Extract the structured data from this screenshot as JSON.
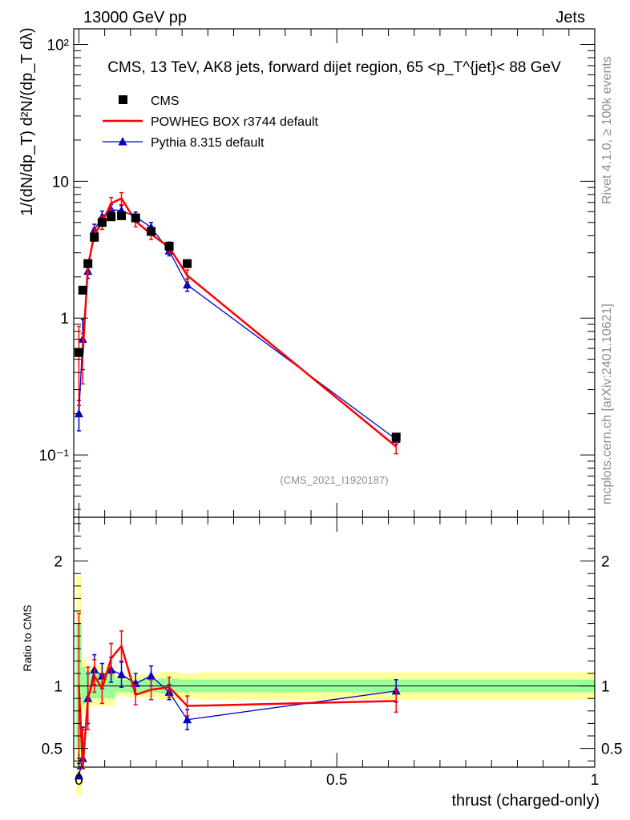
{
  "header": {
    "left": "13000 GeV pp",
    "right": "Jets"
  },
  "side_labels": {
    "rivet": "Rivet 4.1.0, ≥ 100k events",
    "mcplots": "mcplots.cern.ch [arXiv:2401.10621]"
  },
  "colors": {
    "cms": "#000000",
    "powheg": "#ff0000",
    "pythia": "#0000cc",
    "band_inner": "#99ff99",
    "band_outer": "#ffff99"
  },
  "chart_data": [
    {
      "type": "scatter",
      "title": "CMS, 13 TeV, AK8 jets, forward dijet region, 65 <p_T^{jet}< 88 GeV",
      "ylabel": "1/(dN/dp_T) d²N/(dp_T dλ)",
      "yscale": "log",
      "ylim": [
        0.035,
        130
      ],
      "xlim": [
        -0.01,
        1.0
      ],
      "analysis_id": "(CMS_2021_I1920187)",
      "y_ticks": [
        {
          "value": 0.1,
          "label": "10⁻¹"
        },
        {
          "value": 1,
          "label": "1"
        },
        {
          "value": 10,
          "label": "10"
        },
        {
          "value": 100,
          "label": "10²"
        }
      ],
      "legend": [
        "CMS",
        "POWHEG BOX r3744 default",
        "Pythia 8.315 default"
      ],
      "legend_position": "top-left",
      "series": [
        {
          "name": "CMS",
          "marker": "square",
          "x": [
            0.0,
            0.0075,
            0.0175,
            0.03,
            0.045,
            0.0625,
            0.0825,
            0.11,
            0.14,
            0.175,
            0.21,
            0.615
          ],
          "y": [
            0.56,
            1.6,
            2.5,
            3.9,
            5.0,
            5.5,
            5.6,
            5.4,
            4.3,
            3.35,
            2.5,
            0.135
          ]
        },
        {
          "name": "POWHEG BOX r3744 default",
          "marker": "line",
          "x": [
            0.0,
            0.0075,
            0.0175,
            0.03,
            0.045,
            0.0625,
            0.0825,
            0.11,
            0.14,
            0.175,
            0.21,
            0.615
          ],
          "y": [
            0.55,
            0.55,
            2.4,
            4.1,
            5.0,
            6.9,
            7.5,
            5.1,
            4.1,
            3.3,
            2.05,
            0.115
          ],
          "err": [
            0.32,
            0.22,
            0.25,
            0.45,
            0.55,
            0.7,
            0.75,
            0.45,
            0.35,
            0.3,
            0.2,
            0.013
          ]
        },
        {
          "name": "Pythia 8.315 default",
          "marker": "triangle",
          "x": [
            0.0,
            0.0075,
            0.0175,
            0.03,
            0.045,
            0.0625,
            0.0825,
            0.11,
            0.14,
            0.175,
            0.21,
            0.615
          ],
          "y": [
            0.2,
            0.7,
            2.2,
            4.4,
            5.5,
            6.2,
            6.1,
            5.5,
            4.6,
            3.1,
            1.75,
            0.13
          ],
          "err": [
            0.05,
            0.28,
            0.25,
            0.45,
            0.55,
            0.55,
            0.55,
            0.45,
            0.4,
            0.25,
            0.18,
            0.011
          ]
        }
      ]
    },
    {
      "type": "scatter",
      "ylabel": "Ratio to CMS",
      "xlabel": "thrust (charged-only)",
      "ylim": [
        0.35,
        2.35
      ],
      "xlim": [
        -0.01,
        1.0
      ],
      "x_ticks": [
        {
          "value": 0,
          "label": "0"
        },
        {
          "value": 0.5,
          "label": "0.5"
        },
        {
          "value": 1,
          "label": "1"
        }
      ],
      "y_ticks": [
        {
          "value": 0.5,
          "label": "0.5"
        },
        {
          "value": 1,
          "label": "1"
        },
        {
          "value": 2,
          "label": "2"
        }
      ],
      "bands": [
        {
          "x0": -0.005,
          "x1": 0.005,
          "inner": [
            0.5,
            1.5
          ],
          "outer": [
            0.12,
            1.88
          ]
        },
        {
          "x0": 0.005,
          "x1": 0.012,
          "inner": [
            0.85,
            1.15
          ],
          "outer": [
            0.78,
            1.22
          ]
        },
        {
          "x0": 0.012,
          "x1": 0.022,
          "inner": [
            0.88,
            1.12
          ],
          "outer": [
            0.82,
            1.18
          ]
        },
        {
          "x0": 0.022,
          "x1": 0.055,
          "inner": [
            0.9,
            1.1
          ],
          "outer": [
            0.84,
            1.16
          ]
        },
        {
          "x0": 0.055,
          "x1": 0.07,
          "inner": [
            0.9,
            1.1
          ],
          "outer": [
            0.84,
            1.16
          ]
        },
        {
          "x0": 0.07,
          "x1": 0.095,
          "inner": [
            0.95,
            1.05
          ],
          "outer": [
            0.92,
            1.08
          ]
        },
        {
          "x0": 0.095,
          "x1": 0.125,
          "inner": [
            0.95,
            1.05
          ],
          "outer": [
            0.91,
            1.09
          ]
        },
        {
          "x0": 0.125,
          "x1": 0.155,
          "inner": [
            0.95,
            1.05
          ],
          "outer": [
            0.91,
            1.09
          ]
        },
        {
          "x0": 0.155,
          "x1": 0.195,
          "inner": [
            0.94,
            1.06
          ],
          "outer": [
            0.89,
            1.11
          ]
        },
        {
          "x0": 0.195,
          "x1": 0.23,
          "inner": [
            0.95,
            1.05
          ],
          "outer": [
            0.9,
            1.1
          ]
        },
        {
          "x0": 0.23,
          "x1": 1.0,
          "inner": [
            0.95,
            1.05
          ],
          "outer": [
            0.89,
            1.11
          ]
        }
      ],
      "series": [
        {
          "name": "POWHEG BOX r3744 default",
          "marker": "line",
          "x": [
            0.0,
            0.0075,
            0.0175,
            0.03,
            0.045,
            0.0625,
            0.0825,
            0.11,
            0.14,
            0.175,
            0.21,
            0.615
          ],
          "y": [
            1.0,
            0.35,
            0.9,
            1.08,
            0.98,
            1.22,
            1.32,
            0.93,
            0.97,
            0.99,
            0.84,
            0.88
          ],
          "err": [
            0.58,
            0.3,
            0.25,
            0.13,
            0.12,
            0.12,
            0.12,
            0.08,
            0.08,
            0.08,
            0.08,
            0.09
          ]
        },
        {
          "name": "Pythia 8.315 default",
          "marker": "triangle",
          "x": [
            0.0,
            0.0075,
            0.0175,
            0.03,
            0.045,
            0.0625,
            0.0825,
            0.11,
            0.14,
            0.175,
            0.21,
            0.615
          ],
          "y": [
            0.28,
            0.42,
            0.9,
            1.13,
            1.08,
            1.13,
            1.09,
            1.02,
            1.08,
            0.95,
            0.73,
            0.96
          ],
          "err": [
            0.1,
            0.25,
            0.2,
            0.12,
            0.1,
            0.1,
            0.1,
            0.08,
            0.08,
            0.06,
            0.08,
            0.09
          ]
        }
      ]
    }
  ]
}
